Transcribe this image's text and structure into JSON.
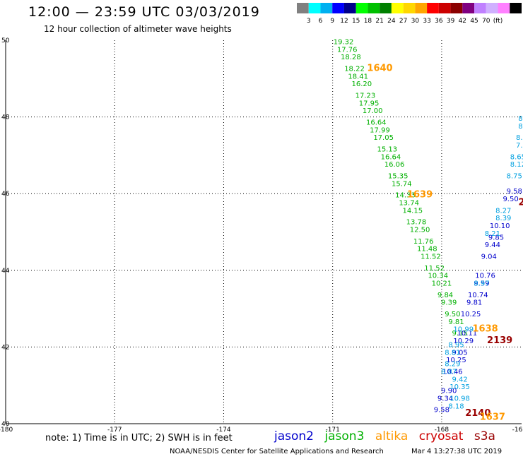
{
  "header": {
    "title": "12:00 — 23:59 UTC 03/03/2019",
    "subtitle": "12 hour collection of altimeter wave heights"
  },
  "colorbar": {
    "colors": [
      "#808080",
      "#00ffff",
      "#00b0f0",
      "#0000ff",
      "#00008b",
      "#00ff00",
      "#00c000",
      "#008000",
      "#ffff00",
      "#ffd700",
      "#ffa500",
      "#ff0000",
      "#cc0000",
      "#8b0000",
      "#800080",
      "#c080ff",
      "#d0b0ff",
      "#ff80ff",
      "#000000"
    ],
    "labels": [
      "3",
      "6",
      "9",
      "12",
      "15",
      "18",
      "21",
      "24",
      "27",
      "30",
      "33",
      "36",
      "39",
      "42",
      "45",
      "70",
      "(ft)"
    ]
  },
  "chart_data": {
    "type": "scatter",
    "title": "12:00 — 23:59 UTC 03/03/2019",
    "subtitle": "12 hour collection of altimeter wave heights",
    "xlim": [
      -180,
      -165.8
    ],
    "ylim": [
      40,
      50
    ],
    "xticks": [
      "-180",
      "-177",
      "-174",
      "-171",
      "-168",
      "-16"
    ],
    "yticks": [
      "40",
      "42",
      "44",
      "46",
      "48",
      "50"
    ],
    "grid": true,
    "series": [
      {
        "name": "jason3",
        "color": "#00b000",
        "points": [
          {
            "lon": -170.7,
            "lat": 49.9,
            "swh": "19.32"
          },
          {
            "lon": -170.6,
            "lat": 49.7,
            "swh": "17.76"
          },
          {
            "lon": -170.5,
            "lat": 49.5,
            "swh": "18.28"
          },
          {
            "lon": -170.4,
            "lat": 49.2,
            "swh": "18.22"
          },
          {
            "lon": -170.3,
            "lat": 49.0,
            "swh": "18.41"
          },
          {
            "lon": -170.2,
            "lat": 48.8,
            "swh": "16.20"
          },
          {
            "lon": -170.1,
            "lat": 48.5,
            "swh": "17.23"
          },
          {
            "lon": -170.0,
            "lat": 48.3,
            "swh": "17.95"
          },
          {
            "lon": -169.9,
            "lat": 48.1,
            "swh": "17.00"
          },
          {
            "lon": -169.8,
            "lat": 47.8,
            "swh": "16.64"
          },
          {
            "lon": -169.7,
            "lat": 47.6,
            "swh": "17.99"
          },
          {
            "lon": -169.6,
            "lat": 47.4,
            "swh": "17.05"
          },
          {
            "lon": -169.5,
            "lat": 47.1,
            "swh": "15.13"
          },
          {
            "lon": -169.4,
            "lat": 46.9,
            "swh": "16.64"
          },
          {
            "lon": -169.3,
            "lat": 46.7,
            "swh": "16.06"
          },
          {
            "lon": -169.2,
            "lat": 46.4,
            "swh": "15.35"
          },
          {
            "lon": -169.1,
            "lat": 46.2,
            "swh": "15.74"
          },
          {
            "lon": -169.0,
            "lat": 45.9,
            "swh": "14.33"
          },
          {
            "lon": -168.9,
            "lat": 45.7,
            "swh": "13.74"
          },
          {
            "lon": -168.8,
            "lat": 45.5,
            "swh": "14.15"
          },
          {
            "lon": -168.7,
            "lat": 45.2,
            "swh": "13.78"
          },
          {
            "lon": -168.6,
            "lat": 45.0,
            "swh": "12.50"
          },
          {
            "lon": -168.5,
            "lat": 44.7,
            "swh": "11.76"
          },
          {
            "lon": -168.4,
            "lat": 44.5,
            "swh": "11.48"
          },
          {
            "lon": -168.3,
            "lat": 44.3,
            "swh": "11.52"
          },
          {
            "lon": -168.2,
            "lat": 44.0,
            "swh": "11.52"
          },
          {
            "lon": -168.1,
            "lat": 43.8,
            "swh": "10.34"
          },
          {
            "lon": -168.0,
            "lat": 43.6,
            "swh": "10.21"
          },
          {
            "lon": -167.9,
            "lat": 43.3,
            "swh": "9.84"
          },
          {
            "lon": -167.8,
            "lat": 43.1,
            "swh": "9.39"
          },
          {
            "lon": -167.7,
            "lat": 42.8,
            "swh": "9.50"
          },
          {
            "lon": -167.6,
            "lat": 42.6,
            "swh": "9.81"
          },
          {
            "lon": -167.5,
            "lat": 42.3,
            "swh": "9.15"
          }
        ]
      },
      {
        "name": "jason2",
        "color": "#0000cc",
        "points": [
          {
            "lon": -166.0,
            "lat": 46.0,
            "swh": "9.58"
          },
          {
            "lon": -166.1,
            "lat": 45.8,
            "swh": "9.50"
          },
          {
            "lon": -166.4,
            "lat": 45.1,
            "swh": "10.10"
          },
          {
            "lon": -166.5,
            "lat": 44.8,
            "swh": "9.85"
          },
          {
            "lon": -166.6,
            "lat": 44.6,
            "swh": "9.44"
          },
          {
            "lon": -166.7,
            "lat": 44.3,
            "swh": "9.04"
          },
          {
            "lon": -166.8,
            "lat": 43.8,
            "swh": "10.76"
          },
          {
            "lon": -166.9,
            "lat": 43.6,
            "swh": "9.59"
          },
          {
            "lon": -167.0,
            "lat": 43.3,
            "swh": "10.74"
          },
          {
            "lon": -167.1,
            "lat": 43.1,
            "swh": "9.81"
          },
          {
            "lon": -167.2,
            "lat": 42.8,
            "swh": "10.25"
          },
          {
            "lon": -167.3,
            "lat": 42.3,
            "swh": "10.11"
          },
          {
            "lon": -167.4,
            "lat": 42.1,
            "swh": "10.29"
          },
          {
            "lon": -167.5,
            "lat": 41.8,
            "swh": "9.05"
          },
          {
            "lon": -167.6,
            "lat": 41.6,
            "swh": "10.25"
          },
          {
            "lon": -167.7,
            "lat": 41.3,
            "swh": "10.46"
          },
          {
            "lon": -167.8,
            "lat": 40.8,
            "swh": "9.90"
          },
          {
            "lon": -167.9,
            "lat": 40.6,
            "swh": "9.34"
          },
          {
            "lon": -168.0,
            "lat": 40.3,
            "swh": "9.58"
          }
        ]
      },
      {
        "name": "altika",
        "color": "#00a0e0",
        "points": [
          {
            "lon": -165.8,
            "lat": 47.9,
            "swh": "8."
          },
          {
            "lon": -165.8,
            "lat": 47.7,
            "swh": "8."
          },
          {
            "lon": -165.8,
            "lat": 47.4,
            "swh": "8.6"
          },
          {
            "lon": -165.8,
            "lat": 47.2,
            "swh": "7.9"
          },
          {
            "lon": -165.9,
            "lat": 46.9,
            "swh": "8.65"
          },
          {
            "lon": -165.9,
            "lat": 46.7,
            "swh": "8.12"
          },
          {
            "lon": -166.0,
            "lat": 46.4,
            "swh": "8.75"
          },
          {
            "lon": -166.3,
            "lat": 45.5,
            "swh": "8.27"
          },
          {
            "lon": -166.3,
            "lat": 45.3,
            "swh": "8.39"
          },
          {
            "lon": -166.6,
            "lat": 44.9,
            "swh": "8.21"
          },
          {
            "lon": -166.9,
            "lat": 43.6,
            "swh": "8.97"
          },
          {
            "lon": -167.4,
            "lat": 42.4,
            "swh": "10.99"
          },
          {
            "lon": -167.6,
            "lat": 42.0,
            "swh": "8.95"
          },
          {
            "lon": -167.7,
            "lat": 41.8,
            "swh": "8.81"
          },
          {
            "lon": -167.7,
            "lat": 41.5,
            "swh": "8.29"
          },
          {
            "lon": -167.8,
            "lat": 41.3,
            "swh": "8.87"
          },
          {
            "lon": -167.5,
            "lat": 41.1,
            "swh": "9.42"
          },
          {
            "lon": -167.5,
            "lat": 40.9,
            "swh": "10.35"
          },
          {
            "lon": -167.5,
            "lat": 40.6,
            "swh": "10.98"
          },
          {
            "lon": -167.6,
            "lat": 40.4,
            "swh": "8.18"
          }
        ]
      }
    ],
    "time_labels": [
      {
        "lon": -169.7,
        "lat": 49.2,
        "text": "1640",
        "color": "#ff9900"
      },
      {
        "lon": -168.6,
        "lat": 45.9,
        "text": "1639",
        "color": "#ff9900"
      },
      {
        "lon": -166.8,
        "lat": 42.4,
        "text": "1638",
        "color": "#ff9900"
      },
      {
        "lon": -166.4,
        "lat": 42.1,
        "text": "2139",
        "color": "#990000"
      },
      {
        "lon": -165.8,
        "lat": 45.7,
        "text": "2",
        "color": "#990000"
      },
      {
        "lon": -167.0,
        "lat": 40.2,
        "text": "2140",
        "color": "#990000"
      },
      {
        "lon": -166.6,
        "lat": 40.1,
        "text": "1637",
        "color": "#ff9900"
      }
    ]
  },
  "legend": {
    "entries": [
      {
        "label": "jason2",
        "color": "#0000cc"
      },
      {
        "label": "jason3",
        "color": "#00b000"
      },
      {
        "label": "altika",
        "color": "#ff9900"
      },
      {
        "label": "cryosat",
        "color": "#cc0000"
      },
      {
        "label": "s3a",
        "color": "#990000"
      }
    ]
  },
  "footer": {
    "note": "note:  1) Time is in UTC;  2) SWH is in feet",
    "credit": "NOAA/NESDIS Center for Satellite Applications and Research",
    "generated": "Mar  4 13:27:38 UTC 2019"
  }
}
